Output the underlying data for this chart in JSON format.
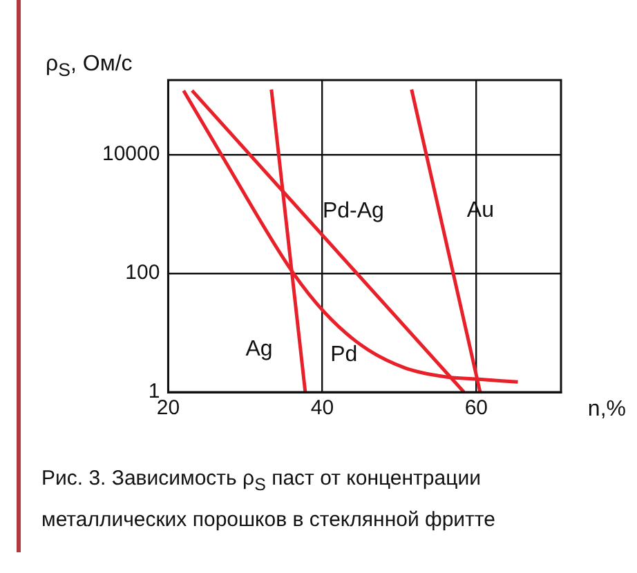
{
  "chart_data": {
    "type": "line",
    "xlabel": "n,%",
    "ylabel": "ρ$_{S}$, Ом/с",
    "xlim": [
      20,
      71
    ],
    "xticks": [
      20,
      40,
      60
    ],
    "ylim": [
      1,
      180000
    ],
    "yticks": [
      1,
      100,
      10000
    ],
    "log": "y",
    "grid": true,
    "legend": false,
    "marker": "none",
    "line_style": "solid",
    "series": [
      {
        "name": "Ag",
        "color": "#e8202a",
        "x": [
          33.4,
          37.8
        ],
        "values": [
          125000,
          1
        ]
      },
      {
        "name": "Pd-Ag",
        "color": "#e8202a",
        "x": [
          23.1,
          58.4
        ],
        "values": [
          120000,
          1
        ]
      },
      {
        "name": "Au",
        "color": "#e8202a",
        "x": [
          51.6,
          60.5
        ],
        "values": [
          125000,
          1
        ]
      },
      {
        "name": "Pd",
        "color": "#e8202a",
        "x": [
          22.0,
          26.9,
          36.1,
          40.3,
          45.2,
          50.6,
          56.1,
          60.0,
          65.4
        ],
        "values": [
          120000,
          10000,
          107,
          22,
          6.0,
          2.6,
          1.8,
          1.66,
          1.48
        ]
      }
    ],
    "annotations": [
      "Рис. 3. Зависимость ρ$_{S}$ паст от концентрации металлических порошков в стеклянной фритте"
    ]
  }
}
